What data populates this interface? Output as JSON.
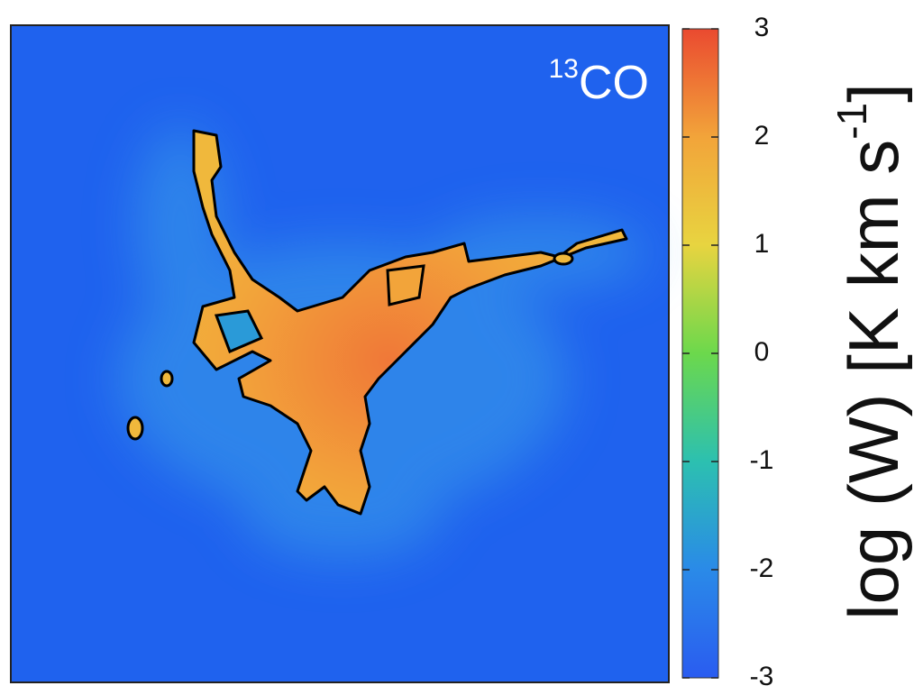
{
  "chart_data": {
    "type": "heatmap",
    "annotation": {
      "sup": "13",
      "text": "CO"
    },
    "colorbar_label": {
      "text": "log (W) [K km s",
      "sup": "-1",
      "end": "]"
    },
    "clim": [
      -3,
      3
    ],
    "cticks": [
      3,
      2,
      1,
      0,
      -1,
      -2,
      -3
    ],
    "colormap": [
      "#2a5cf0",
      "#2a8ae8",
      "#2cc0b0",
      "#6cd84c",
      "#e8d440",
      "#f2a43a",
      "#ea4a30"
    ],
    "background_color": "#1f62ee"
  }
}
